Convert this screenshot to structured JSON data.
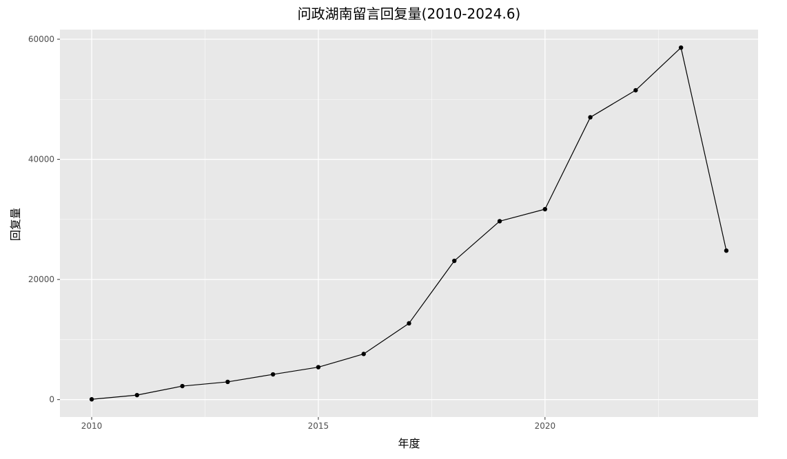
{
  "chart_data": {
    "type": "line",
    "title": "问政湖南留言回复量(2010-2024.6)",
    "xlabel": "年度",
    "ylabel": "回复量",
    "x": [
      2010,
      2011,
      2012,
      2013,
      2014,
      2015,
      2016,
      2017,
      2018,
      2019,
      2020,
      2021,
      2022,
      2023,
      2024
    ],
    "series": [
      {
        "values": [
          50,
          750,
          2250,
          2950,
          4200,
          5400,
          7600,
          12700,
          23100,
          29700,
          31700,
          47000,
          51500,
          58600,
          24800
        ]
      }
    ],
    "xlim": [
      2009.3,
      2024.7
    ],
    "ylim": [
      -2900,
      61600
    ],
    "x_ticks": [
      2010,
      2015,
      2020
    ],
    "y_ticks": [
      0,
      20000,
      40000,
      60000
    ],
    "x_tick_labels": [
      "2010",
      "2015",
      "2020"
    ],
    "y_tick_labels": [
      "0",
      "20000",
      "40000",
      "60000"
    ],
    "grid": true,
    "panel_background": "#e8e8e8",
    "grid_color": "#ffffff",
    "line_color": "#000000",
    "point_color": "#000000"
  }
}
